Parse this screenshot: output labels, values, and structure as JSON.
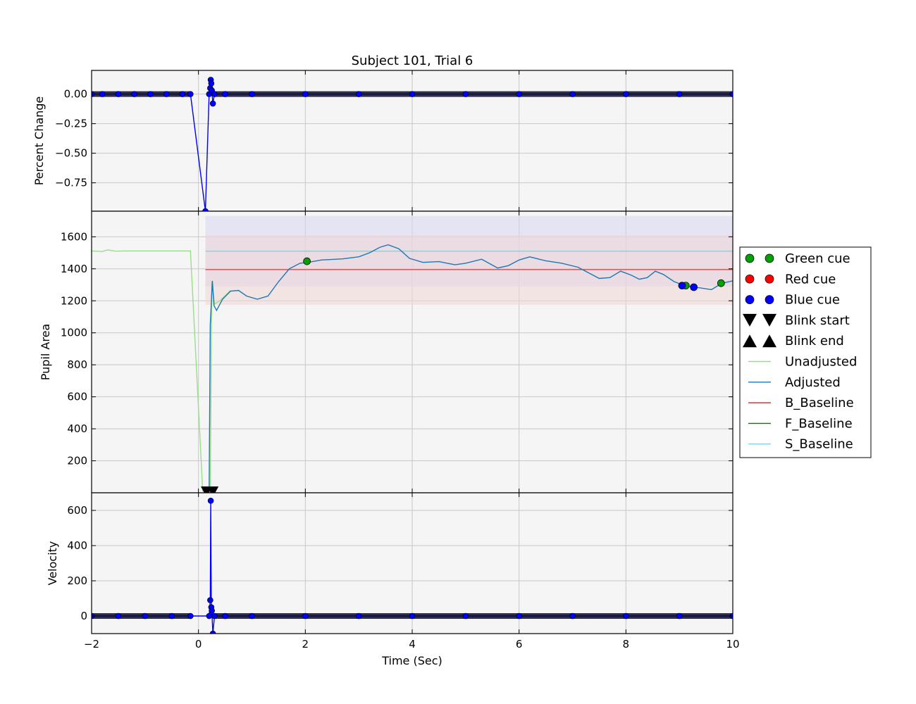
{
  "chart_data": {
    "type": "line",
    "title": "Subject 101, Trial 6",
    "xlabel": "Time (Sec)",
    "xlim": [
      -2,
      10
    ],
    "xticks": [
      "−2",
      "0",
      "2",
      "4",
      "6",
      "8",
      "10"
    ],
    "panels": [
      {
        "id": "percent-change",
        "ylabel": "Percent Change",
        "ylim": [
          -0.99,
          0.2
        ],
        "yticks": [
          {
            "v": 0.0,
            "label": "0.00"
          },
          {
            "v": -0.25,
            "label": "−0.25"
          },
          {
            "v": -0.5,
            "label": "−0.50"
          },
          {
            "v": -0.75,
            "label": "−0.75"
          }
        ],
        "grid": true,
        "series": [
          {
            "color": "#0000ff",
            "marker": "circle",
            "points": [
              [
                -2.0,
                0.0
              ],
              [
                -1.8,
                0.0
              ],
              [
                -1.5,
                0.0
              ],
              [
                -1.2,
                0.0
              ],
              [
                -0.9,
                0.0
              ],
              [
                -0.6,
                0.0
              ],
              [
                -0.3,
                0.0
              ],
              [
                -0.15,
                0.0
              ],
              [
                0.13,
                -0.99
              ],
              [
                0.2,
                0.0
              ],
              [
                0.22,
                0.05
              ],
              [
                0.23,
                0.12
              ],
              [
                0.24,
                0.09
              ],
              [
                0.25,
                0.03
              ],
              [
                0.27,
                -0.08
              ],
              [
                0.3,
                0.0
              ],
              [
                0.5,
                0.0
              ],
              [
                1.0,
                0.0
              ],
              [
                2.0,
                0.0
              ],
              [
                3.0,
                0.0
              ],
              [
                4.0,
                0.0
              ],
              [
                5.0,
                0.0
              ],
              [
                6.0,
                0.0
              ],
              [
                7.0,
                0.0
              ],
              [
                8.0,
                0.0
              ],
              [
                9.0,
                0.0
              ],
              [
                10.0,
                0.0
              ]
            ]
          }
        ]
      },
      {
        "id": "pupil-area",
        "ylabel": "Pupil Area",
        "ylim": [
          0,
          1760
        ],
        "yticks": [
          {
            "v": 200,
            "label": "200"
          },
          {
            "v": 400,
            "label": "400"
          },
          {
            "v": 600,
            "label": "600"
          },
          {
            "v": 800,
            "label": "800"
          },
          {
            "v": 1000,
            "label": "1000"
          },
          {
            "v": 1200,
            "label": "1200"
          },
          {
            "v": 1400,
            "label": "1400"
          },
          {
            "v": 1600,
            "label": "1600"
          }
        ],
        "grid": true,
        "bands": [
          {
            "x0": 0.13,
            "x1": 10,
            "y0": 1290,
            "y1": 1730,
            "color": "#d6d6f0"
          },
          {
            "x0": 0.13,
            "x1": 10,
            "y0": 1175,
            "y1": 1610,
            "color": "#f0d6d6"
          }
        ],
        "hlines": [
          {
            "name": "B_Baseline",
            "y": 1395,
            "x0": 0.13,
            "x1": 10,
            "color": "#d62728"
          },
          {
            "name": "S_Baseline",
            "y": 1510,
            "x0": 0.13,
            "x1": 10,
            "color": "#7fc9c9"
          }
        ],
        "series": [
          {
            "name": "Unadjusted",
            "color": "#98df8a",
            "points": [
              [
                -2.0,
                1512
              ],
              [
                -1.8,
                1508
              ],
              [
                -1.7,
                1518
              ],
              [
                -1.55,
                1510
              ],
              [
                -1.4,
                1512
              ],
              [
                -1.2,
                1512
              ],
              [
                -0.8,
                1512
              ],
              [
                -0.4,
                1512
              ],
              [
                -0.15,
                1512
              ],
              [
                0.08,
                10
              ],
              [
                0.22,
                10
              ],
              [
                0.25,
                1320
              ],
              [
                0.3,
                1180
              ],
              [
                0.4,
                1200
              ],
              [
                0.6,
                1265
              ]
            ]
          },
          {
            "name": "Adjusted",
            "color": "#1f77b4",
            "points": [
              [
                0.2,
                0
              ],
              [
                0.22,
                1050
              ],
              [
                0.24,
                1190
              ],
              [
                0.26,
                1325
              ],
              [
                0.29,
                1170
              ],
              [
                0.34,
                1140
              ],
              [
                0.45,
                1210
              ],
              [
                0.6,
                1260
              ],
              [
                0.75,
                1265
              ],
              [
                0.9,
                1230
              ],
              [
                1.1,
                1210
              ],
              [
                1.3,
                1230
              ],
              [
                1.5,
                1320
              ],
              [
                1.7,
                1400
              ],
              [
                1.9,
                1435
              ],
              [
                2.05,
                1440
              ],
              [
                2.3,
                1455
              ],
              [
                2.7,
                1462
              ],
              [
                3.0,
                1475
              ],
              [
                3.2,
                1500
              ],
              [
                3.4,
                1535
              ],
              [
                3.55,
                1550
              ],
              [
                3.75,
                1525
              ],
              [
                3.95,
                1465
              ],
              [
                4.2,
                1440
              ],
              [
                4.5,
                1445
              ],
              [
                4.8,
                1425
              ],
              [
                5.0,
                1435
              ],
              [
                5.3,
                1460
              ],
              [
                5.6,
                1405
              ],
              [
                5.8,
                1420
              ],
              [
                6.0,
                1455
              ],
              [
                6.2,
                1475
              ],
              [
                6.5,
                1450
              ],
              [
                6.8,
                1435
              ],
              [
                7.1,
                1410
              ],
              [
                7.3,
                1375
              ],
              [
                7.5,
                1340
              ],
              [
                7.7,
                1345
              ],
              [
                7.9,
                1385
              ],
              [
                8.1,
                1360
              ],
              [
                8.25,
                1335
              ],
              [
                8.4,
                1345
              ],
              [
                8.55,
                1385
              ],
              [
                8.7,
                1365
              ],
              [
                8.9,
                1320
              ],
              [
                9.1,
                1295
              ],
              [
                9.4,
                1280
              ],
              [
                9.6,
                1270
              ],
              [
                9.8,
                1310
              ],
              [
                10.0,
                1325
              ]
            ]
          }
        ],
        "markers": [
          {
            "name": "Green cue",
            "color": "#00a000",
            "points": [
              [
                2.03,
                1447
              ],
              [
                9.12,
                1295
              ],
              [
                9.78,
                1310
              ]
            ]
          },
          {
            "name": "Blue cue",
            "color": "#0000ff",
            "points": [
              [
                9.05,
                1295
              ],
              [
                9.27,
                1285
              ]
            ]
          },
          {
            "name": "Blink start",
            "shape": "triangle-down",
            "points": [
              [
                0.15,
                0
              ],
              [
                0.27,
                0
              ]
            ]
          }
        ]
      },
      {
        "id": "velocity",
        "ylabel": "Velocity",
        "ylim": [
          -100,
          700
        ],
        "yticks": [
          {
            "v": 0,
            "label": "0"
          },
          {
            "v": 200,
            "label": "200"
          },
          {
            "v": 400,
            "label": "400"
          },
          {
            "v": 600,
            "label": "600"
          }
        ],
        "grid": true,
        "series": [
          {
            "color": "#0000ff",
            "marker": "circle",
            "points": [
              [
                -2.0,
                0
              ],
              [
                -1.5,
                0
              ],
              [
                -1.0,
                0
              ],
              [
                -0.5,
                0
              ],
              [
                -0.15,
                0
              ],
              [
                0.2,
                0
              ],
              [
                0.22,
                90
              ],
              [
                0.23,
                655
              ],
              [
                0.24,
                50
              ],
              [
                0.25,
                30
              ],
              [
                0.27,
                -100
              ],
              [
                0.3,
                0
              ],
              [
                0.5,
                0
              ],
              [
                1.0,
                0
              ],
              [
                2.0,
                0
              ],
              [
                3.0,
                0
              ],
              [
                4.0,
                0
              ],
              [
                5.0,
                0
              ],
              [
                6.0,
                0
              ],
              [
                7.0,
                0
              ],
              [
                8.0,
                0
              ],
              [
                9.0,
                0
              ],
              [
                10.0,
                0
              ]
            ]
          }
        ]
      }
    ],
    "legend": {
      "placement": "right",
      "entries": [
        {
          "label": "Green cue",
          "kind": "circle",
          "color": "#00a000"
        },
        {
          "label": "Red cue",
          "kind": "circle",
          "color": "#ff0000"
        },
        {
          "label": "Blue cue",
          "kind": "circle",
          "color": "#0000ff"
        },
        {
          "label": "Blink start",
          "kind": "triangle-down",
          "color": "#000000"
        },
        {
          "label": "Blink end",
          "kind": "triangle-up",
          "color": "#000000"
        },
        {
          "label": "Unadjusted",
          "kind": "line",
          "color": "#98df8a"
        },
        {
          "label": "Adjusted",
          "kind": "line",
          "color": "#1f77b4"
        },
        {
          "label": "B_Baseline",
          "kind": "line",
          "color": "#d62728"
        },
        {
          "label": "F_Baseline",
          "kind": "line",
          "color": "#008000"
        },
        {
          "label": "S_Baseline",
          "kind": "line",
          "color": "#87ceeb"
        }
      ]
    }
  }
}
